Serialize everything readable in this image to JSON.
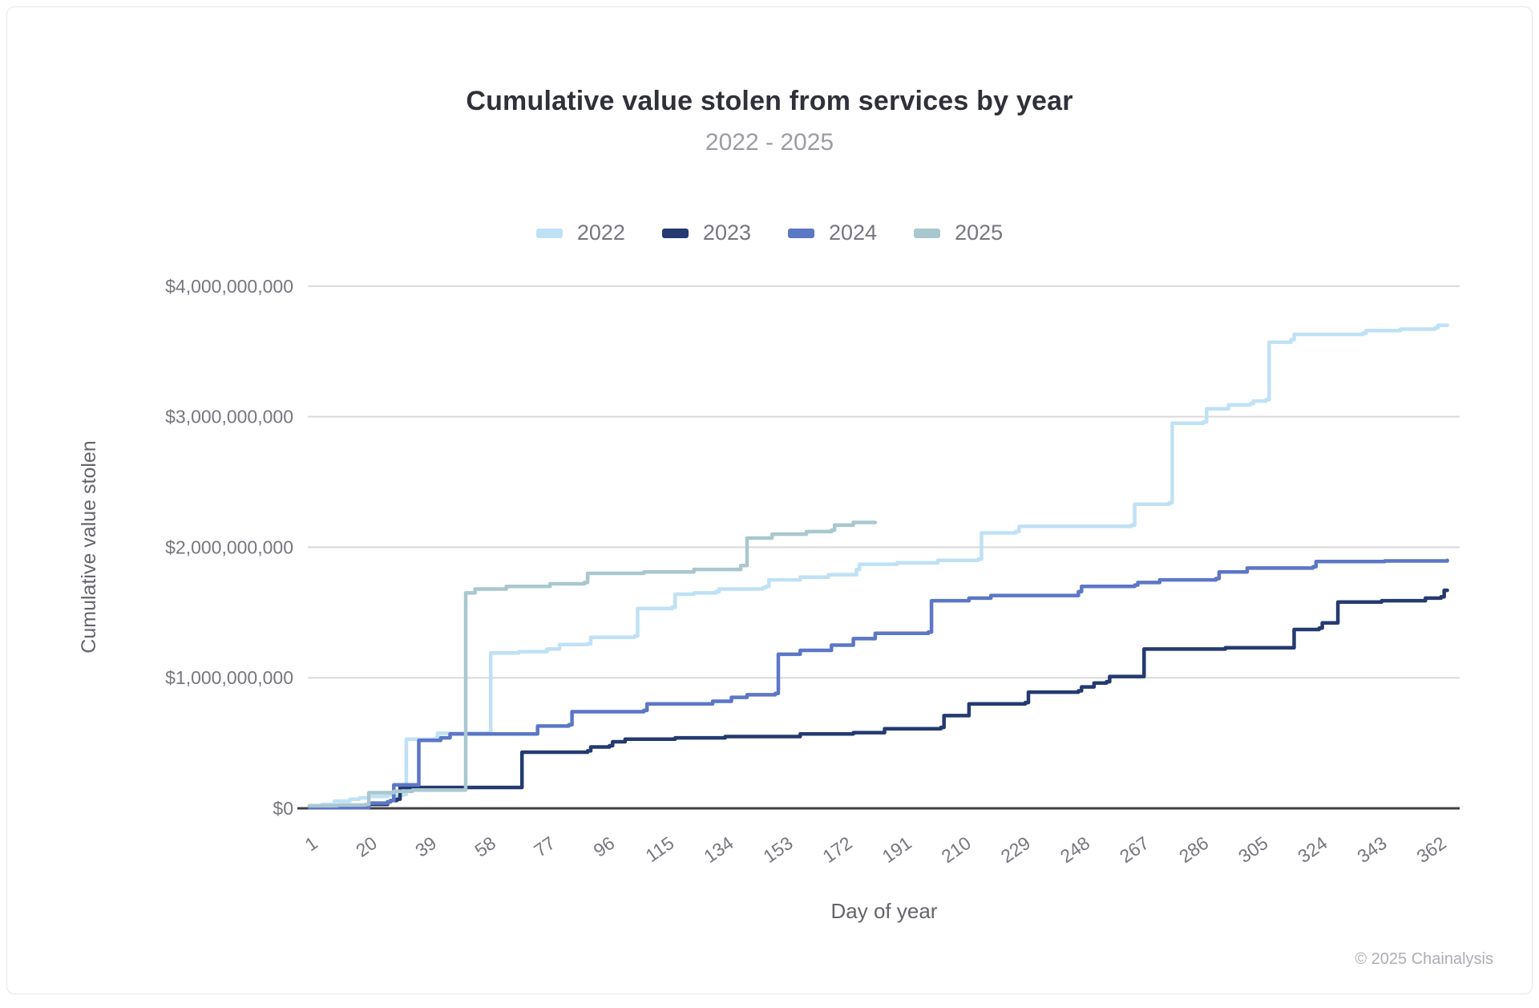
{
  "header": {
    "title": "Cumulative value stolen from services by year",
    "subtitle": "2022 - 2025"
  },
  "legend": {
    "items": [
      {
        "label": "2022",
        "color": "#BFE1F5"
      },
      {
        "label": "2023",
        "color": "#243A70"
      },
      {
        "label": "2024",
        "color": "#5C77C6"
      },
      {
        "label": "2025",
        "color": "#A9C7CF"
      }
    ]
  },
  "footer": {
    "credit": "© 2025 Chainalysis"
  },
  "colors": {
    "grid": "#d9d9db",
    "axis_line": "#3f3f44",
    "tick_text": "#76767e",
    "axis_title_text": "#64646c",
    "series_2022": "#BFE1F5",
    "series_2023": "#243A70",
    "series_2024": "#5C77C6",
    "series_2025": "#A9C7CF"
  },
  "chart_data": {
    "type": "line",
    "step": true,
    "title": "Cumulative value stolen from services by year",
    "subtitle": "2022 - 2025",
    "xlabel": "Day of year",
    "ylabel": "Cumulative value stolen",
    "unit": "USD billions",
    "xlim": [
      1,
      366
    ],
    "ylim_billions": [
      0,
      4
    ],
    "grid": true,
    "legend_position": "top-center",
    "x_ticks": [
      1,
      20,
      39,
      58,
      77,
      96,
      115,
      134,
      153,
      172,
      191,
      210,
      229,
      248,
      267,
      286,
      305,
      324,
      343,
      362
    ],
    "y_ticks": [
      {
        "value_billions": 0,
        "label": "$0"
      },
      {
        "value_billions": 1,
        "label": "$1,000,000,000"
      },
      {
        "value_billions": 2,
        "label": "$2,000,000,000"
      },
      {
        "value_billions": 3,
        "label": "$3,000,000,000"
      },
      {
        "value_billions": 4,
        "label": "$4,000,000,000"
      }
    ],
    "series": [
      {
        "name": "2022",
        "color": "#BFE1F5",
        "points_day_billions": [
          [
            1,
            0.01
          ],
          [
            5,
            0.03
          ],
          [
            9,
            0.055
          ],
          [
            14,
            0.07
          ],
          [
            17,
            0.08
          ],
          [
            20,
            0.09
          ],
          [
            26,
            0.1
          ],
          [
            31,
            0.105
          ],
          [
            32,
            0.53
          ],
          [
            41,
            0.535
          ],
          [
            42,
            0.575
          ],
          [
            58,
            0.58
          ],
          [
            59,
            1.19
          ],
          [
            68,
            1.2
          ],
          [
            77,
            1.22
          ],
          [
            80,
            1.22
          ],
          [
            81,
            1.255
          ],
          [
            90,
            1.26
          ],
          [
            91,
            1.31
          ],
          [
            105,
            1.32
          ],
          [
            106,
            1.53
          ],
          [
            117,
            1.54
          ],
          [
            118,
            1.64
          ],
          [
            124,
            1.65
          ],
          [
            131,
            1.66
          ],
          [
            132,
            1.68
          ],
          [
            146,
            1.69
          ],
          [
            147,
            1.7
          ],
          [
            148,
            1.75
          ],
          [
            158,
            1.77
          ],
          [
            167,
            1.79
          ],
          [
            176,
            1.83
          ],
          [
            177,
            1.87
          ],
          [
            189,
            1.88
          ],
          [
            202,
            1.9
          ],
          [
            215,
            1.91
          ],
          [
            216,
            2.11
          ],
          [
            227,
            2.12
          ],
          [
            228,
            2.16
          ],
          [
            264,
            2.17
          ],
          [
            265,
            2.33
          ],
          [
            276,
            2.34
          ],
          [
            277,
            2.95
          ],
          [
            287,
            2.96
          ],
          [
            288,
            3.06
          ],
          [
            295,
            3.09
          ],
          [
            302,
            3.1
          ],
          [
            303,
            3.12
          ],
          [
            307,
            3.13
          ],
          [
            308,
            3.57
          ],
          [
            315,
            3.59
          ],
          [
            316,
            3.63
          ],
          [
            338,
            3.64
          ],
          [
            339,
            3.66
          ],
          [
            350,
            3.67
          ],
          [
            361,
            3.68
          ],
          [
            362,
            3.7
          ],
          [
            365,
            3.7
          ]
        ]
      },
      {
        "name": "2023",
        "color": "#243A70",
        "points_day_billions": [
          [
            1,
            0.005
          ],
          [
            20,
            0.03
          ],
          [
            26,
            0.05
          ],
          [
            27,
            0.06
          ],
          [
            29,
            0.07
          ],
          [
            30,
            0.16
          ],
          [
            68,
            0.16
          ],
          [
            69,
            0.43
          ],
          [
            90,
            0.44
          ],
          [
            91,
            0.47
          ],
          [
            97,
            0.48
          ],
          [
            98,
            0.51
          ],
          [
            102,
            0.53
          ],
          [
            118,
            0.54
          ],
          [
            134,
            0.55
          ],
          [
            158,
            0.57
          ],
          [
            175,
            0.58
          ],
          [
            184,
            0.58
          ],
          [
            185,
            0.61
          ],
          [
            203,
            0.62
          ],
          [
            204,
            0.71
          ],
          [
            211,
            0.71
          ],
          [
            212,
            0.8
          ],
          [
            230,
            0.81
          ],
          [
            231,
            0.89
          ],
          [
            247,
            0.9
          ],
          [
            248,
            0.93
          ],
          [
            252,
            0.96
          ],
          [
            256,
            0.97
          ],
          [
            257,
            1.01
          ],
          [
            267,
            1.01
          ],
          [
            268,
            1.22
          ],
          [
            294,
            1.23
          ],
          [
            315,
            1.23
          ],
          [
            316,
            1.37
          ],
          [
            324,
            1.38
          ],
          [
            325,
            1.42
          ],
          [
            329,
            1.42
          ],
          [
            330,
            1.58
          ],
          [
            344,
            1.59
          ],
          [
            358,
            1.61
          ],
          [
            363,
            1.62
          ],
          [
            364,
            1.67
          ],
          [
            365,
            1.67
          ]
        ]
      },
      {
        "name": "2024",
        "color": "#5C77C6",
        "points_day_billions": [
          [
            1,
            0.005
          ],
          [
            20,
            0.04
          ],
          [
            26,
            0.05
          ],
          [
            27,
            0.06
          ],
          [
            28,
            0.18
          ],
          [
            35,
            0.18
          ],
          [
            36,
            0.52
          ],
          [
            43,
            0.54
          ],
          [
            46,
            0.57
          ],
          [
            73,
            0.57
          ],
          [
            74,
            0.63
          ],
          [
            84,
            0.64
          ],
          [
            85,
            0.74
          ],
          [
            108,
            0.75
          ],
          [
            109,
            0.8
          ],
          [
            130,
            0.82
          ],
          [
            136,
            0.85
          ],
          [
            141,
            0.87
          ],
          [
            150,
            0.88
          ],
          [
            151,
            1.18
          ],
          [
            158,
            1.21
          ],
          [
            168,
            1.25
          ],
          [
            175,
            1.3
          ],
          [
            182,
            1.34
          ],
          [
            199,
            1.35
          ],
          [
            200,
            1.59
          ],
          [
            212,
            1.61
          ],
          [
            219,
            1.63
          ],
          [
            247,
            1.66
          ],
          [
            248,
            1.7
          ],
          [
            265,
            1.71
          ],
          [
            266,
            1.73
          ],
          [
            273,
            1.75
          ],
          [
            291,
            1.76
          ],
          [
            292,
            1.81
          ],
          [
            301,
            1.84
          ],
          [
            322,
            1.85
          ],
          [
            323,
            1.89
          ],
          [
            345,
            1.895
          ],
          [
            365,
            1.9
          ]
        ]
      },
      {
        "name": "2025",
        "color": "#A9C7CF",
        "points_day_billions": [
          [
            1,
            0.02
          ],
          [
            10,
            0.025
          ],
          [
            19,
            0.03
          ],
          [
            20,
            0.12
          ],
          [
            28,
            0.13
          ],
          [
            34,
            0.14
          ],
          [
            50,
            0.14
          ],
          [
            51,
            1.65
          ],
          [
            54,
            1.68
          ],
          [
            64,
            1.7
          ],
          [
            78,
            1.72
          ],
          [
            89,
            1.73
          ],
          [
            90,
            1.8
          ],
          [
            108,
            1.81
          ],
          [
            124,
            1.83
          ],
          [
            139,
            1.86
          ],
          [
            141,
            2.07
          ],
          [
            149,
            2.1
          ],
          [
            160,
            2.12
          ],
          [
            168,
            2.13
          ],
          [
            169,
            2.17
          ],
          [
            175,
            2.19
          ],
          [
            182,
            2.19
          ]
        ]
      }
    ]
  }
}
